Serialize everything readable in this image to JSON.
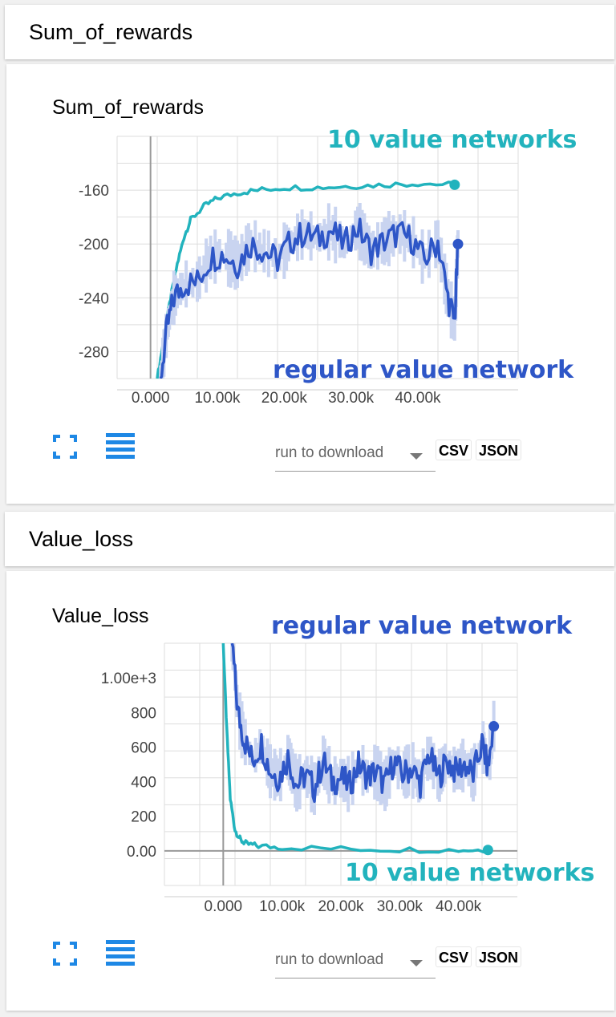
{
  "sections": [
    {
      "header": "Sum_of_rewards",
      "card_title": "Sum_of_rewards",
      "controls": {
        "run_placeholder": "run to download",
        "csv_label": "CSV",
        "json_label": "JSON",
        "fit_icon": "fit-domain-icon",
        "data_icon": "toggle-data-icon"
      }
    },
    {
      "header": "Value_loss",
      "card_title": "Value_loss",
      "controls": {
        "run_placeholder": "run to download",
        "csv_label": "CSV",
        "json_label": "JSON",
        "fit_icon": "fit-domain-icon",
        "data_icon": "toggle-data-icon"
      }
    }
  ],
  "colors": {
    "accent_blue": "#1e88e5",
    "teal_series": "#22b3bd",
    "blue_series": "#2e56c7",
    "raw_fill": "#c9d4f0"
  },
  "chart_data": [
    {
      "type": "line",
      "title": "Sum_of_rewards",
      "xlabel": "",
      "ylabel": "",
      "xlim": [
        -5000,
        55000
      ],
      "ylim": [
        -300,
        -120
      ],
      "x_ticks": [
        0,
        10000,
        20000,
        30000,
        40000
      ],
      "x_tick_labels": [
        "0.000",
        "10.00k",
        "20.00k",
        "30.00k",
        "40.00k"
      ],
      "y_ticks": [
        -160,
        -200,
        -240,
        -280
      ],
      "y_tick_labels": [
        "-160",
        "-200",
        "-240",
        "-280"
      ],
      "grid": true,
      "series": [
        {
          "annotation": "10 value networks",
          "color": "#22b3bd",
          "x": [
            1000,
            2000,
            3000,
            4000,
            5000,
            6000,
            8000,
            10000,
            13000,
            16000,
            20000,
            25000,
            30000,
            35000,
            40000,
            45500
          ],
          "values": [
            -300,
            -270,
            -240,
            -215,
            -195,
            -182,
            -172,
            -166,
            -162,
            -160,
            -158,
            -158,
            -157,
            -156,
            -155,
            -156
          ]
        },
        {
          "annotation": "regular value network",
          "color": "#2e56c7",
          "x": [
            1500,
            2500,
            3500,
            5000,
            7000,
            9000,
            11000,
            13000,
            15000,
            17000,
            19000,
            21000,
            23000,
            25000,
            27000,
            29000,
            31000,
            33000,
            35000,
            37000,
            39000,
            41000,
            43000,
            44500,
            45500,
            46000
          ],
          "values": [
            -300,
            -262,
            -240,
            -230,
            -228,
            -210,
            -208,
            -215,
            -200,
            -205,
            -212,
            -198,
            -192,
            -196,
            -190,
            -200,
            -188,
            -205,
            -198,
            -192,
            -196,
            -212,
            -198,
            -240,
            -258,
            -200
          ]
        }
      ]
    },
    {
      "type": "line",
      "title": "Value_loss",
      "xlabel": "",
      "ylabel": "",
      "xlim": [
        -10000,
        50000
      ],
      "ylim": [
        -200,
        1200
      ],
      "x_ticks": [
        0,
        10000,
        20000,
        30000,
        40000
      ],
      "x_tick_labels": [
        "0.000",
        "10.00k",
        "20.00k",
        "30.00k",
        "40.00k"
      ],
      "y_ticks": [
        1000,
        800,
        600,
        400,
        200,
        0
      ],
      "y_tick_labels": [
        "1.00e+3",
        "800",
        "600",
        "400",
        "200",
        "0.00"
      ],
      "grid": true,
      "series": [
        {
          "annotation": "10 value networks",
          "color": "#22b3bd",
          "x": [
            0,
            600,
            1200,
            2000,
            3000,
            4000,
            6000,
            10000,
            20000,
            30000,
            40000,
            45000
          ],
          "values": [
            1200,
            700,
            300,
            120,
            60,
            40,
            28,
            20,
            12,
            8,
            5,
            5
          ]
        },
        {
          "annotation": "regular value network",
          "color": "#2e56c7",
          "x": [
            1500,
            2500,
            3500,
            5000,
            6500,
            8000,
            9500,
            11000,
            12500,
            14000,
            15500,
            17000,
            18500,
            20000,
            21500,
            23000,
            24500,
            26000,
            27500,
            29000,
            30500,
            32000,
            33500,
            35000,
            36500,
            38000,
            39500,
            41000,
            42500,
            44000,
            45000,
            46000
          ],
          "values": [
            1200,
            800,
            650,
            520,
            620,
            460,
            420,
            540,
            380,
            440,
            360,
            520,
            400,
            420,
            380,
            500,
            430,
            460,
            380,
            520,
            440,
            480,
            390,
            560,
            420,
            520,
            460,
            500,
            440,
            620,
            480,
            720
          ]
        }
      ]
    }
  ]
}
